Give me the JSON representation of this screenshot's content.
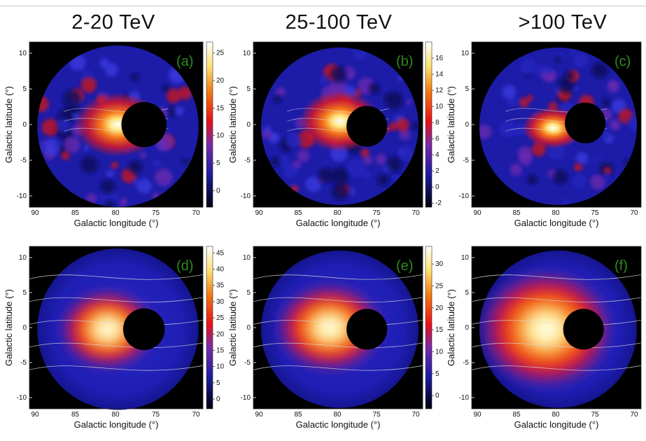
{
  "column_titles": [
    "2-20 TeV",
    "25-100 TeV",
    ">100 TeV"
  ],
  "panels": [
    {
      "label": "(a)",
      "cb_ticks": [
        "0",
        "5",
        "10",
        "15",
        "20",
        "25"
      ]
    },
    {
      "label": "(b)",
      "cb_ticks": [
        "-2",
        "0",
        "2",
        "4",
        "6",
        "8",
        "10",
        "12",
        "14",
        "16"
      ]
    },
    {
      "label": "(c)",
      "cb_ticks": []
    },
    {
      "label": "(d)",
      "cb_ticks": [
        "0",
        "5",
        "10",
        "15",
        "20",
        "25",
        "30",
        "35",
        "40",
        "45"
      ]
    },
    {
      "label": "(e)",
      "cb_ticks": [
        "0",
        "5",
        "10",
        "15",
        "20",
        "25",
        "30"
      ]
    },
    {
      "label": "(f)",
      "cb_ticks": []
    }
  ],
  "axes": {
    "xlabel": "Galactic longitude (°)",
    "ylabel": "Galactic latitude (°)",
    "x_ticks": [
      "90",
      "85",
      "80",
      "75",
      "70"
    ],
    "y_ticks": [
      "10",
      "5",
      "0",
      "-5",
      "-10"
    ]
  },
  "colors": {
    "background": "#000000",
    "low": "#1c1c9c",
    "mid": "#e8101a",
    "high": "#ffffff",
    "label_green": "#2f8a1e",
    "contour": "#dcdcdc"
  }
}
